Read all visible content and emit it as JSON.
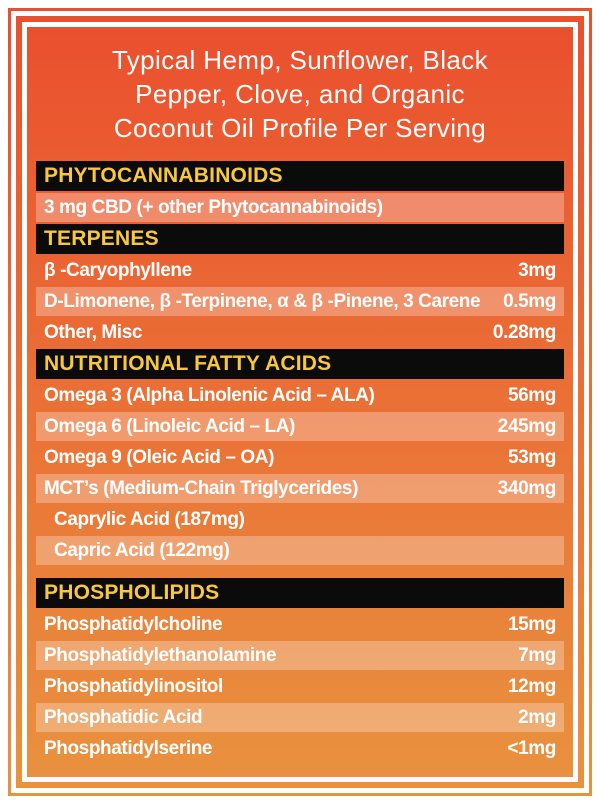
{
  "title": {
    "lines": [
      "Typical Hemp, Sunflower, Black",
      "Pepper, Clove, and Organic",
      "Coconut Oil Profile Per Serving"
    ]
  },
  "colors": {
    "background_top": "#ea4f2e",
    "background_bottom": "#e9923e",
    "section_header_bg": "#0b0b0b",
    "section_header_text": "#f8c740",
    "row_text": "#ffffff",
    "row_highlight": "rgba(255,255,255,0.28)",
    "frame_white": "#ffffff"
  },
  "sections": [
    {
      "header": "PHYTOCANNABINOIDS",
      "rows": [
        {
          "label": "3 mg CBD (+ other Phytocannabinoids)",
          "value": "",
          "light": true,
          "indent": false
        }
      ]
    },
    {
      "header": "TERPENES",
      "rows": [
        {
          "label": "β -Caryophyllene",
          "value": "3mg",
          "light": false,
          "indent": false
        },
        {
          "label": "D-Limonene, β -Terpinene, α & β -Pinene, 3 Carene",
          "value": "0.5mg",
          "light": true,
          "indent": false
        },
        {
          "label": "Other, Misc",
          "value": "0.28mg",
          "light": false,
          "indent": false
        }
      ]
    },
    {
      "header": "NUTRITIONAL FATTY ACIDS",
      "rows": [
        {
          "label": "Omega 3 (Alpha Linolenic Acid – ALA)",
          "value": "56mg",
          "light": false,
          "indent": false
        },
        {
          "label": "Omega 6 (Linoleic Acid – LA)",
          "value": "245mg",
          "light": true,
          "indent": false
        },
        {
          "label": "Omega 9 (Oleic Acid – OA)",
          "value": "53mg",
          "light": false,
          "indent": false
        },
        {
          "label": "MCT’s (Medium-Chain Triglycerides)",
          "value": "340mg",
          "light": true,
          "indent": false
        },
        {
          "label": "Caprylic Acid (187mg)",
          "value": "",
          "light": false,
          "indent": true
        },
        {
          "label": "Capric Acid (122mg)",
          "value": "",
          "light": true,
          "indent": true
        }
      ]
    },
    {
      "header": "PHOSPHOLIPIDS",
      "gap_before": true,
      "rows": [
        {
          "label": "Phosphatidylcholine",
          "value": "15mg",
          "light": false,
          "indent": false
        },
        {
          "label": "Phosphatidylethanolamine",
          "value": "7mg",
          "light": true,
          "indent": false
        },
        {
          "label": "Phosphatidylinositol",
          "value": "12mg",
          "light": false,
          "indent": false
        },
        {
          "label": "Phosphatidic Acid",
          "value": "2mg",
          "light": true,
          "indent": false
        },
        {
          "label": "Phosphatidylserine",
          "value": "<1mg",
          "light": false,
          "indent": false
        }
      ]
    }
  ]
}
